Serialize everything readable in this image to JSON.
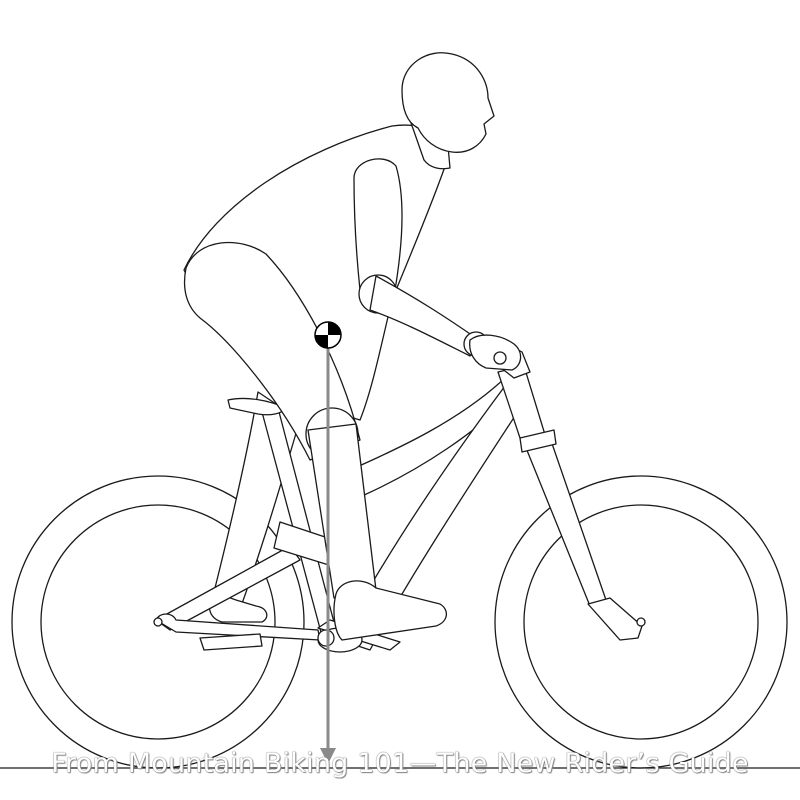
{
  "figure": {
    "caption": "From Mountain Biking 101—The New Rider’s Guide",
    "colors": {
      "outline": "#1a1a1a",
      "background": "#ffffff",
      "center_of_mass_line": "#8a8a8a",
      "center_of_mass_marker": "#000000"
    },
    "icons": [
      "center-of-mass-icon"
    ]
  }
}
